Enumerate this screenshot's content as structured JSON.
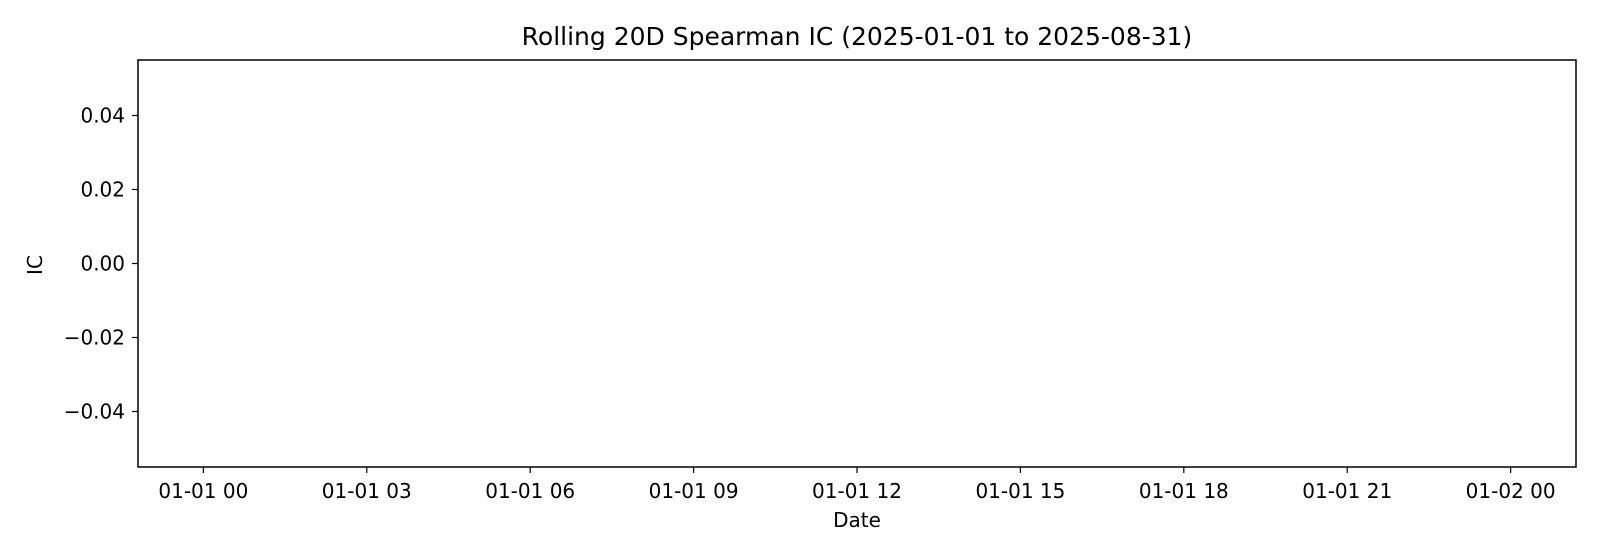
{
  "chart_data": {
    "type": "line",
    "title": "Rolling 20D Spearman IC (2025-01-01 to 2025-08-31)",
    "xlabel": "Date",
    "ylabel": "IC",
    "x_ticks": [
      "01-01 00",
      "01-01 03",
      "01-01 06",
      "01-01 09",
      "01-01 12",
      "01-01 15",
      "01-01 18",
      "01-01 21",
      "01-02 00"
    ],
    "y_ticks": [
      "0.04",
      "0.02",
      "0.00",
      "−0.02",
      "−0.04"
    ],
    "x_tick_values": [
      0,
      3,
      6,
      9,
      12,
      15,
      18,
      21,
      24
    ],
    "y_tick_values": [
      0.04,
      0.02,
      0.0,
      -0.02,
      -0.04
    ],
    "xlim": [
      -1.2,
      25.2
    ],
    "ylim": [
      -0.055,
      0.055
    ],
    "grid": false,
    "series": []
  }
}
